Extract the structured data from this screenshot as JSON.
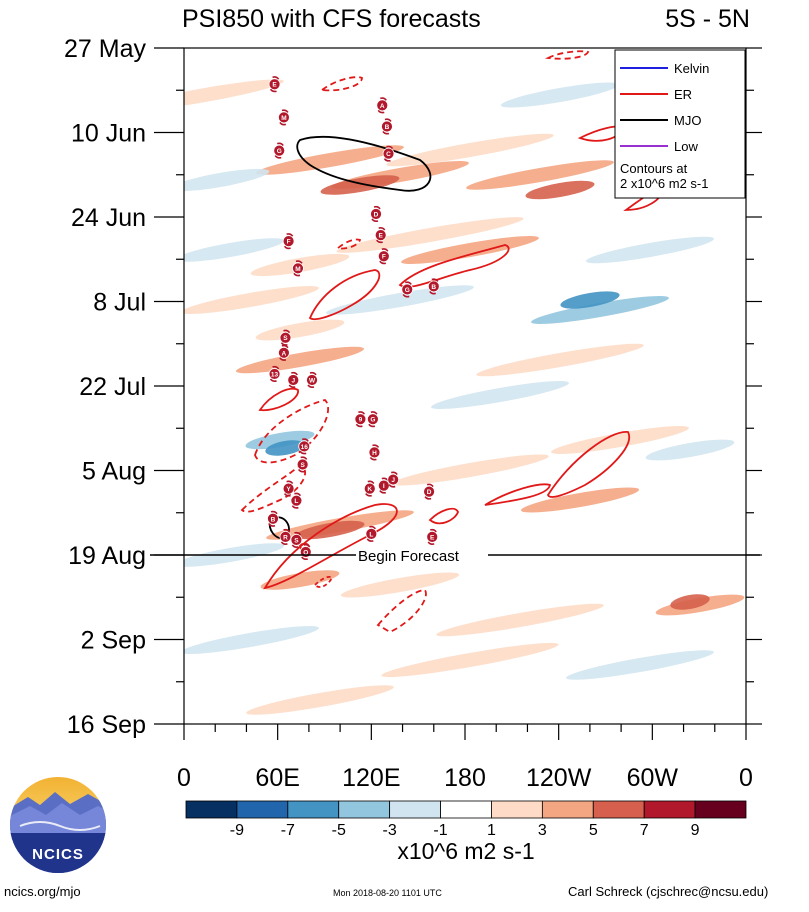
{
  "chart_data": {
    "type": "heatmap",
    "title": "PSI850 with CFS forecasts",
    "region": "5S - 5N",
    "y_ticks": [
      "27 May",
      "10 Jun",
      "24 Jun",
      "8 Jul",
      "22 Jul",
      "5 Aug",
      "19 Aug",
      "2 Sep",
      "16 Sep"
    ],
    "y_range_days": [
      0,
      112
    ],
    "x_ticks": [
      "0",
      "60E",
      "120E",
      "180",
      "120W",
      "60W",
      "0"
    ],
    "x_range_deg": [
      0,
      360
    ],
    "forecast_marker": {
      "label": "Begin Forecast",
      "day": 84
    },
    "colorbar": {
      "labels": [
        "-9",
        "-7",
        "-5",
        "-3",
        "-1",
        "1",
        "3",
        "5",
        "7",
        "9"
      ],
      "colors": [
        "#053061",
        "#2166ac",
        "#4393c3",
        "#92c5de",
        "#d1e5f0",
        "#ffffff",
        "#fddbc7",
        "#f4a582",
        "#d6604d",
        "#b2182b",
        "#67001f"
      ],
      "units": "x10^6 m2 s-1"
    },
    "legend": {
      "items": [
        {
          "name": "Kelvin",
          "color": "#1f1fe0"
        },
        {
          "name": "ER",
          "color": "#e11818"
        },
        {
          "name": "MJO",
          "color": "#000000"
        },
        {
          "name": "Low",
          "color": "#9a30d0"
        }
      ],
      "note": [
        "Contours at",
        "2 x10^6 m2 s-1"
      ],
      "placement": "top-right"
    },
    "storms": [
      {
        "letter": "E",
        "lon": 58,
        "day": 6
      },
      {
        "letter": "M",
        "lon": 64,
        "day": 11.5
      },
      {
        "letter": "G",
        "lon": 61,
        "day": 17
      },
      {
        "letter": "A",
        "lon": 127,
        "day": 9.5
      },
      {
        "letter": "B",
        "lon": 130,
        "day": 13
      },
      {
        "letter": "C",
        "lon": 131,
        "day": 17.5
      },
      {
        "letter": "D",
        "lon": 123,
        "day": 27.5
      },
      {
        "letter": "E",
        "lon": 126,
        "day": 31
      },
      {
        "letter": "F",
        "lon": 128,
        "day": 34.5
      },
      {
        "letter": "F",
        "lon": 67,
        "day": 32
      },
      {
        "letter": "M",
        "lon": 73,
        "day": 36.5
      },
      {
        "letter": "G",
        "lon": 143,
        "day": 40
      },
      {
        "letter": "B",
        "lon": 160,
        "day": 39.5
      },
      {
        "letter": "S",
        "lon": 65,
        "day": 48
      },
      {
        "letter": "A",
        "lon": 64,
        "day": 50.5
      },
      {
        "letter": "13",
        "lon": 58,
        "day": 54
      },
      {
        "letter": "J",
        "lon": 70,
        "day": 55
      },
      {
        "letter": "W",
        "lon": 82,
        "day": 55
      },
      {
        "letter": "9",
        "lon": 113,
        "day": 61.5
      },
      {
        "letter": "G",
        "lon": 121,
        "day": 61.5
      },
      {
        "letter": "16",
        "lon": 77,
        "day": 66
      },
      {
        "letter": "S",
        "lon": 76,
        "day": 69
      },
      {
        "letter": "H",
        "lon": 122,
        "day": 67
      },
      {
        "letter": "Y",
        "lon": 67,
        "day": 73
      },
      {
        "letter": "K",
        "lon": 119,
        "day": 73
      },
      {
        "letter": "I",
        "lon": 128,
        "day": 72.5
      },
      {
        "letter": "J",
        "lon": 134,
        "day": 71.5
      },
      {
        "letter": "D",
        "lon": 157,
        "day": 73.5
      },
      {
        "letter": "L",
        "lon": 72,
        "day": 75
      },
      {
        "letter": "B",
        "lon": 57,
        "day": 78
      },
      {
        "letter": "R",
        "lon": 65,
        "day": 81
      },
      {
        "letter": "S",
        "lon": 72,
        "day": 81.5
      },
      {
        "letter": "O",
        "lon": 78,
        "day": 83.5
      },
      {
        "letter": "L",
        "lon": 120,
        "day": 80.5
      },
      {
        "letter": "E",
        "lon": 159,
        "day": 81
      }
    ]
  },
  "footer": {
    "left": "ncics.org/mjo",
    "middle": "Mon 2018-08-20 1101 UTC",
    "right": "Carl Schreck (cjschrec@ncsu.edu)"
  },
  "logo": {
    "text": "NCICS"
  }
}
